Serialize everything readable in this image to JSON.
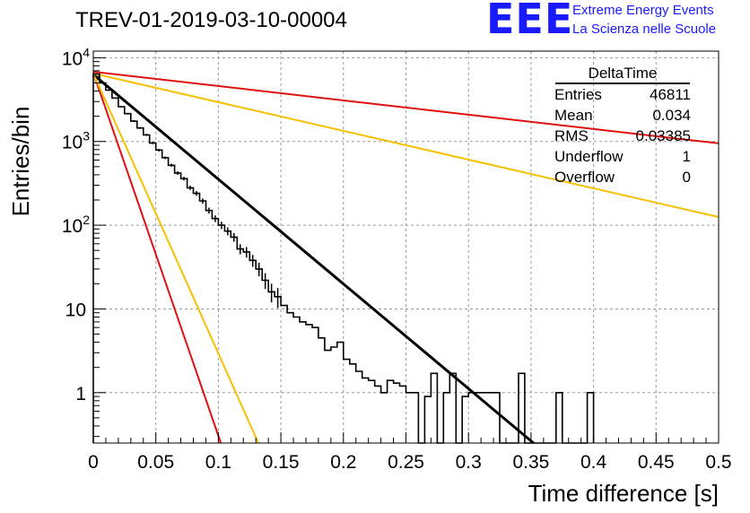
{
  "title": "TREV-01-2019-03-10-00004",
  "logo": {
    "mark": "EEE",
    "line1": "Extreme Energy Events",
    "line2": "La Scienza nelle Scuole"
  },
  "stats_box": {
    "name": "DeltaTime",
    "rows": [
      {
        "label": "Entries",
        "value": "46811"
      },
      {
        "label": "Mean",
        "value": "0.034"
      },
      {
        "label": "RMS",
        "value": "0.03385"
      },
      {
        "label": "Underflow",
        "value": "1"
      },
      {
        "label": "Overflow",
        "value": "0"
      }
    ]
  },
  "colors": {
    "histogram": "#000000",
    "fit": "#000000",
    "red_curve": "#e01010",
    "yellow_curve": "#f5c000",
    "grid": "#9a9a9a",
    "logo": "#1a1aff"
  },
  "chart_data": {
    "type": "line",
    "xlabel": "Time difference [s]",
    "ylabel": "Entries/bin",
    "xlim": [
      0,
      0.5
    ],
    "ylim": [
      0.25,
      12000
    ],
    "yscale": "log",
    "grid": true,
    "x_ticks": [
      {
        "v": 0,
        "label": "0"
      },
      {
        "v": 0.05,
        "label": "0.05"
      },
      {
        "v": 0.1,
        "label": "0.1"
      },
      {
        "v": 0.15,
        "label": "0.15"
      },
      {
        "v": 0.2,
        "label": "0.2"
      },
      {
        "v": 0.25,
        "label": "0.25"
      },
      {
        "v": 0.3,
        "label": "0.3"
      },
      {
        "v": 0.35,
        "label": "0.35"
      },
      {
        "v": 0.4,
        "label": "0.4"
      },
      {
        "v": 0.45,
        "label": "0.45"
      },
      {
        "v": 0.5,
        "label": "0.5"
      }
    ],
    "y_ticks": [
      {
        "v": 1,
        "label": "1"
      },
      {
        "v": 10,
        "label": "10"
      },
      {
        "v": 100,
        "base": "10",
        "exp": "2"
      },
      {
        "v": 1000,
        "base": "10",
        "exp": "3"
      },
      {
        "v": 10000,
        "base": "10",
        "exp": "4"
      }
    ],
    "histogram": {
      "bin_width": 0.005,
      "values": [
        6400,
        5000,
        4100,
        3300,
        2600,
        2150,
        1750,
        1450,
        1200,
        960,
        790,
        640,
        520,
        420,
        360,
        280,
        240,
        195,
        150,
        120,
        100,
        85,
        72,
        52,
        48,
        38,
        30,
        22,
        16,
        14,
        11,
        9,
        8,
        7,
        6.5,
        6,
        4.5,
        3.2,
        3.5,
        4,
        2.5,
        2.2,
        1.8,
        1.5,
        1.4,
        1.2,
        1.0,
        1.4,
        1.3,
        1.2,
        1.0,
        1.0,
        0.0,
        0.9,
        1.7,
        0.0,
        1.0,
        1.7,
        0.0,
        0.9,
        1.0,
        1.0,
        1.0,
        1.0,
        1.0,
        0.0,
        0.0,
        0.0,
        1.7,
        0.0,
        0.0,
        0.0,
        0.0,
        0.0,
        1.0,
        0.0,
        0.0,
        0.0,
        0.0,
        1.0
      ]
    },
    "series": [
      {
        "color": "black",
        "x": [
          0,
          0.352
        ],
        "y": [
          6300,
          0.25
        ]
      },
      {
        "color": "red",
        "x": [
          0,
          0.5
        ],
        "y": [
          6800,
          950
        ]
      },
      {
        "color": "yellow",
        "x": [
          0,
          0.5
        ],
        "y": [
          6500,
          125
        ]
      },
      {
        "color": "red",
        "x": [
          0,
          0.102
        ],
        "y": [
          6600,
          0.25
        ]
      },
      {
        "color": "yellow",
        "x": [
          0,
          0.132
        ],
        "y": [
          6500,
          0.25
        ]
      }
    ]
  }
}
